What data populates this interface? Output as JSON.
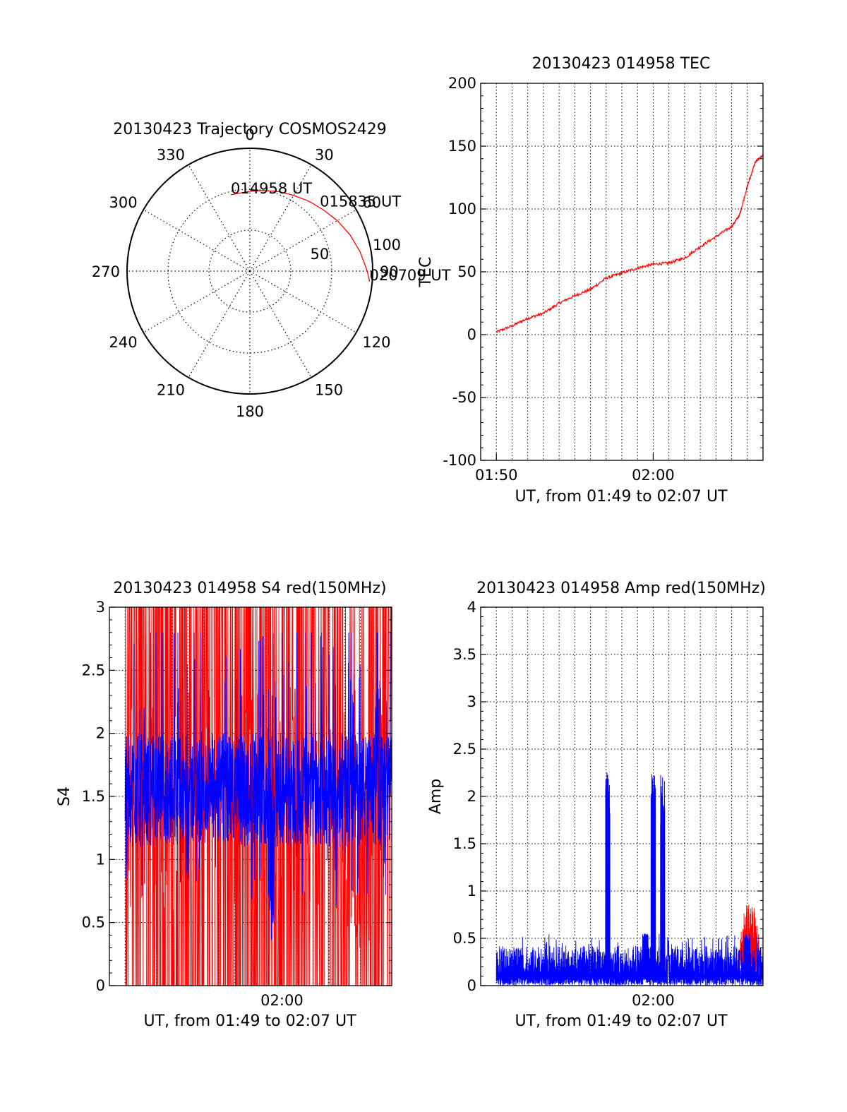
{
  "polar": {
    "title": "20130423 Trajectory COSMOS2429",
    "azimuth_labels": [
      "0",
      "30",
      "60",
      "90",
      "120",
      "150",
      "180",
      "210",
      "240",
      "270",
      "300",
      "330"
    ],
    "radial_labels": [
      "50",
      "100"
    ],
    "chart_data": {
      "type": "line",
      "coordinate_system": "polar (azimuth clockwise from north, radius = zenith angle in degrees)",
      "radial_range": [
        0,
        90
      ],
      "grid": "dotted",
      "series": [
        {
          "color": "#ff0000",
          "azimuth_deg": [
            -14,
            0,
            10,
            20,
            30,
            40,
            50,
            60,
            70,
            80,
            90,
            95
          ],
          "zenith_deg": [
            57.6,
            58.5,
            60,
            62,
            64,
            67,
            70,
            74,
            78,
            82,
            86,
            88
          ]
        }
      ],
      "annotations": [
        {
          "text": "014958 UT",
          "azimuth_deg": -14,
          "zenith_deg": 57.6
        },
        {
          "text": "015835 UT",
          "azimuth_deg": 48,
          "zenith_deg": 69
        },
        {
          "text": "020709 UT",
          "azimuth_deg": 95,
          "zenith_deg": 88
        }
      ]
    }
  },
  "tec": {
    "title": "20130423 014958 TEC",
    "ylabel": "TEC",
    "xlabel": "UT, from 01:49 to 02:07 UT",
    "yticks": [
      "-100",
      "-50",
      "0",
      "50",
      "100",
      "150",
      "200"
    ],
    "xticks": [
      "01:50",
      "02:00"
    ],
    "chart_data": {
      "type": "line",
      "x_unit": "minutes after 01:49 UT",
      "xlim": [
        0,
        18.0
      ],
      "ylim": [
        -100,
        200
      ],
      "grid": "dotted",
      "series": [
        {
          "color": "#ff0000",
          "x": [
            1,
            2,
            3,
            4,
            5,
            6,
            7,
            8,
            9,
            10,
            11,
            12,
            13,
            14,
            15,
            16,
            16.5,
            17,
            17.5,
            18.0
          ],
          "y": [
            2,
            7,
            13,
            17,
            25,
            31,
            36,
            45,
            49,
            53,
            56,
            57,
            61,
            70,
            78,
            86,
            95,
            118,
            137,
            143
          ]
        }
      ]
    }
  },
  "s4": {
    "title": "20130423 014958 S4 red(150MHz)",
    "ylabel": "S4",
    "xlabel": "UT, from 01:49 to 02:07 UT",
    "yticks": [
      "0",
      "0.5",
      "1",
      "1.5",
      "2",
      "2.5",
      "3"
    ],
    "xticks": [
      "02:00"
    ],
    "chart_data": {
      "type": "line",
      "x_unit": "minutes after 01:49 UT",
      "xlim": [
        0,
        18.0
      ],
      "ylim": [
        0,
        3
      ],
      "grid": "dotted",
      "series": [
        {
          "color": "#ff0000",
          "mean": 1.5,
          "range": [
            0,
            3
          ]
        },
        {
          "color": "#0000ff",
          "mean": 1.55,
          "range": [
            0.3,
            2.8
          ]
        }
      ]
    }
  },
  "amp": {
    "title": "20130423 014958 Amp red(150MHz)",
    "ylabel": "Amp",
    "xlabel": "UT, from 01:49 to 02:07 UT",
    "yticks": [
      "0",
      "0.5",
      "1",
      "1.5",
      "2",
      "2.5",
      "3",
      "3.5",
      "4"
    ],
    "xticks": [
      "02:00"
    ],
    "chart_data": {
      "type": "line",
      "x_unit": "minutes after 01:49 UT",
      "xlim": [
        0,
        18.0
      ],
      "ylim": [
        0,
        4
      ],
      "grid": "dotted",
      "series": [
        {
          "color": "#0000ff",
          "baseline_range": [
            0,
            0.42
          ],
          "spikes": [
            {
              "x": 8.1,
              "peak": 2.28
            },
            {
              "x": 10.5,
              "peak": 0.55
            },
            {
              "x": 11.0,
              "peak": 2.25
            },
            {
              "x": 11.6,
              "peak": 2.25
            },
            {
              "x": 17.0,
              "peak": 0.55
            }
          ]
        },
        {
          "color": "#ff0000",
          "burst": {
            "x_range": [
              16.4,
              17.9
            ],
            "peak": 0.92
          }
        }
      ]
    }
  }
}
